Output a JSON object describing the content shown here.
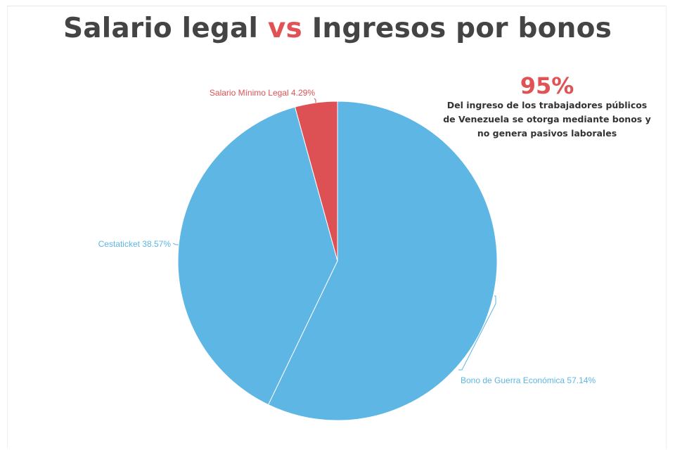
{
  "title": {
    "part1": "Salario legal ",
    "vs": "vs",
    "part2": " Ingresos por bonos"
  },
  "callout": {
    "value": "95%",
    "text": "Del ingreso de los trabajadores públicos de Venezuela se otorga mediante bonos y no genera pasivos laborales"
  },
  "colors": {
    "blue": "#5db6e4",
    "red": "#dd5154",
    "accent": "#e05254"
  },
  "chart_data": {
    "type": "pie",
    "title": "Salario legal vs Ingresos por bonos",
    "slices": [
      {
        "label": "Bono de Guerra Económica 57.14%",
        "name": "Bono de Guerra Económica",
        "value": 57.14,
        "color": "#5db6e4"
      },
      {
        "label": "Cestaticket 38.57%",
        "name": "Cestaticket",
        "value": 38.57,
        "color": "#5db6e4"
      },
      {
        "label": "Salario Mínimo Legal 4.29%",
        "name": "Salario Mínimo Legal",
        "value": 4.29,
        "color": "#dd5154"
      }
    ]
  }
}
